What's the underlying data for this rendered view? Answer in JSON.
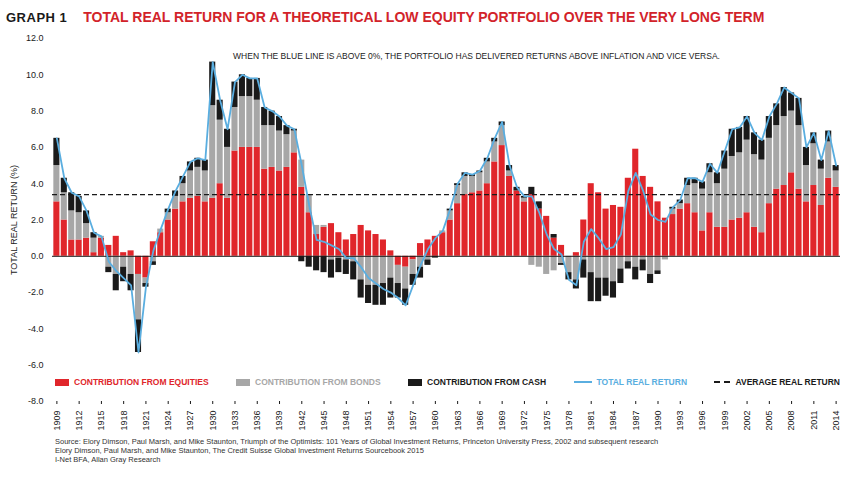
{
  "chart_data": {
    "type": "bar",
    "figure_label": "GRAPH 1",
    "title": "TOTAL REAL RETURN FOR A THEORETICAL LOW EQUITY PORTFOLIO OVER THE VERY LONG TERM",
    "annotation": "WHEN THE BLUE LINE IS ABOVE 0%, THE PORTFOLIO HAS DELIVERED RETURNS ABOVE INFLATION AND VICE VERSA.",
    "y_label": "TOTAL REAL RETURN (%)",
    "source": [
      "Source: Elory Dimson, Paul Marsh, and Mike Staunton, Triumph of the Optimists: 101 Years of Global Investment Returns, Princeton University Press, 2002 and subsequent research",
      "Elory Dimson, Paul Marsh, and Mike Staunton, The Credit Suisse Global Investment Returns Sourcebook 2015",
      "I-Net BFA, Allan Gray Research"
    ],
    "stacked": true,
    "grid": false,
    "legend": "bottom",
    "categories": [
      "1909",
      null,
      null,
      "1912",
      null,
      null,
      "1915",
      null,
      null,
      "1918",
      null,
      null,
      "1921",
      null,
      null,
      "1924",
      null,
      null,
      "1927",
      null,
      null,
      "1930",
      null,
      null,
      "1933",
      null,
      null,
      "1936",
      null,
      null,
      "1939",
      null,
      null,
      "1942",
      null,
      null,
      "1945",
      null,
      null,
      "1948",
      null,
      null,
      "1951",
      null,
      null,
      "1954",
      null,
      null,
      "1957",
      null,
      null,
      "1960",
      null,
      null,
      "1963",
      null,
      null,
      "1966",
      null,
      null,
      "1969",
      null,
      null,
      "1972",
      null,
      null,
      "1975",
      null,
      null,
      "1978",
      null,
      null,
      "1981",
      null,
      null,
      "1984",
      null,
      null,
      "1987",
      null,
      null,
      "1990",
      null,
      null,
      "1993",
      null,
      null,
      "1996",
      null,
      null,
      "1999",
      null,
      null,
      "2002",
      null,
      null,
      "2005",
      null,
      null,
      "2008",
      null,
      null,
      "2011",
      null,
      null,
      "2014"
    ],
    "ylim": [
      -8,
      12
    ],
    "yticks": [
      {
        "value": -8,
        "label": "-8.0"
      },
      {
        "value": -6,
        "label": "-6.0"
      },
      {
        "value": -4,
        "label": "-4.0"
      },
      {
        "value": -2,
        "label": "-2.0"
      },
      {
        "value": 0,
        "label": "0.0"
      },
      {
        "value": 2,
        "label": "2.0"
      },
      {
        "value": 4,
        "label": "4.0"
      },
      {
        "value": 6,
        "label": "6.0"
      },
      {
        "value": 8,
        "label": "8.0"
      },
      {
        "value": 10,
        "label": "10.0"
      },
      {
        "value": 12,
        "label": "12.0"
      }
    ],
    "series": [
      {
        "name": "CONTRIBUTION FROM EQUITIES",
        "type": "bar",
        "color": "#e0262b",
        "values": [
          3.0,
          2.0,
          0.9,
          0.9,
          1.0,
          0.2,
          1.0,
          0.6,
          1.1,
          0.2,
          0.3,
          -1.0,
          -1.2,
          0.8,
          1.3,
          2.0,
          2.6,
          3.0,
          3.2,
          3.3,
          3.0,
          3.2,
          4.0,
          3.2,
          5.8,
          6.0,
          6.0,
          6.0,
          4.8,
          4.9,
          4.7,
          4.9,
          5.7,
          3.8,
          2.4,
          1.2,
          1.6,
          1.8,
          1.3,
          0.9,
          1.2,
          1.7,
          1.4,
          1.2,
          0.9,
          0.3,
          -0.5,
          -0.6,
          -0.2,
          0.7,
          0.9,
          1.1,
          1.3,
          2.0,
          2.9,
          3.4,
          3.5,
          3.6,
          4.0,
          5.2,
          6.1,
          4.4,
          3.6,
          3.0,
          3.4,
          2.6,
          2.2,
          1.0,
          0.6,
          0.0,
          0.2,
          2.0,
          4.0,
          3.5,
          2.6,
          2.8,
          2.7,
          4.3,
          5.9,
          4.4,
          3.8,
          3.0,
          2.1,
          2.3,
          2.6,
          2.9,
          2.4,
          1.4,
          2.4,
          1.6,
          1.6,
          2.0,
          2.1,
          2.4,
          1.6,
          1.3,
          2.9,
          3.7,
          3.9,
          4.6,
          3.7,
          3.0,
          3.9,
          2.8,
          4.3,
          3.8
        ]
      },
      {
        "name": "CONTRIBUTION FROM BONDS",
        "type": "bar",
        "color": "#a7a7a7",
        "values": [
          2.0,
          1.5,
          1.6,
          1.5,
          0.8,
          0.8,
          0.1,
          -0.6,
          -1.0,
          -0.6,
          -1.0,
          -2.5,
          -0.3,
          -0.3,
          0.2,
          0.4,
          0.7,
          1.0,
          1.5,
          1.6,
          1.7,
          5.1,
          3.5,
          2.8,
          2.4,
          2.8,
          2.8,
          2.6,
          2.4,
          2.3,
          2.2,
          1.8,
          1.2,
          1.5,
          1.0,
          0.5,
          0.1,
          -0.2,
          -0.1,
          -0.2,
          -0.3,
          -1.3,
          -1.6,
          -1.6,
          -1.5,
          -1.2,
          -1.0,
          -1.2,
          -0.8,
          -0.6,
          -0.2,
          0.0,
          0.1,
          0.5,
          1.0,
          1.0,
          0.9,
          1.0,
          1.2,
          1.1,
          1.1,
          0.3,
          0.0,
          0.2,
          -0.5,
          -0.6,
          -1.0,
          -0.8,
          -0.4,
          -0.9,
          -1.3,
          -0.2,
          -0.9,
          -1.2,
          -1.2,
          -1.4,
          -0.7,
          -0.3,
          -0.6,
          -0.2,
          -1.0,
          -0.8,
          -0.2,
          0.3,
          0.3,
          1.0,
          1.6,
          2.3,
          2.2,
          2.4,
          3.2,
          3.5,
          3.6,
          4.0,
          4.0,
          4.0,
          3.6,
          3.5,
          3.8,
          3.4,
          3.5,
          2.0,
          2.3,
          2.0,
          2.0,
          0.9
        ]
      },
      {
        "name": "CONTRIBUTION FROM CASH",
        "type": "bar",
        "color": "#1a1a1a",
        "values": [
          1.5,
          0.8,
          1.0,
          0.9,
          0.7,
          0.3,
          0.0,
          -0.3,
          -0.9,
          -0.8,
          -0.9,
          -1.8,
          -0.2,
          -0.2,
          0.0,
          0.2,
          0.3,
          0.4,
          0.5,
          0.5,
          0.6,
          2.4,
          1.1,
          1.0,
          1.4,
          1.2,
          1.0,
          1.2,
          1.0,
          0.8,
          0.8,
          0.5,
          0.1,
          -0.3,
          -0.6,
          -0.8,
          -0.9,
          -1.0,
          -0.8,
          -0.8,
          -1.0,
          -1.0,
          -1.0,
          -1.1,
          -1.2,
          -1.1,
          -0.8,
          -0.9,
          -0.6,
          -0.6,
          -0.3,
          -0.1,
          0.0,
          0.1,
          0.1,
          0.2,
          0.1,
          0.1,
          0.2,
          0.2,
          0.2,
          0.3,
          0.2,
          0.1,
          0.4,
          0.4,
          0.0,
          0.2,
          -0.1,
          -0.4,
          -0.5,
          -1.0,
          -1.6,
          -1.3,
          -1.0,
          -0.9,
          -0.8,
          -0.4,
          -0.7,
          -0.6,
          -0.5,
          -0.2,
          0.0,
          0.1,
          0.2,
          0.4,
          0.3,
          0.4,
          0.5,
          0.6,
          1.0,
          1.5,
          1.4,
          1.3,
          1.2,
          1.1,
          1.2,
          1.2,
          1.6,
          1.0,
          1.5,
          1.0,
          0.6,
          0.5,
          0.6,
          0.3
        ]
      },
      {
        "name": "TOTAL REAL RETURN",
        "type": "line",
        "color": "#5aaee0",
        "values": [
          6.5,
          4.3,
          3.5,
          3.3,
          2.5,
          1.3,
          1.1,
          -0.3,
          -0.8,
          -1.2,
          -1.6,
          -5.3,
          -1.7,
          0.3,
          1.5,
          2.6,
          3.6,
          4.4,
          5.2,
          5.4,
          5.3,
          10.7,
          8.6,
          7.0,
          9.6,
          10.0,
          9.8,
          9.8,
          8.2,
          8.0,
          7.7,
          7.2,
          7.0,
          5.0,
          2.8,
          0.9,
          0.8,
          0.6,
          0.4,
          -0.1,
          -0.1,
          -0.6,
          -1.2,
          -1.5,
          -1.8,
          -2.0,
          -2.3,
          -2.7,
          -1.6,
          -0.5,
          0.4,
          1.0,
          1.4,
          2.6,
          4.0,
          4.6,
          4.5,
          4.7,
          5.4,
          6.5,
          7.4,
          5.0,
          3.8,
          3.3,
          3.3,
          2.4,
          1.2,
          0.4,
          0.1,
          -1.3,
          -1.6,
          0.8,
          1.5,
          1.0,
          0.4,
          0.5,
          1.2,
          3.6,
          4.6,
          3.6,
          2.3,
          2.0,
          1.9,
          2.7,
          3.1,
          4.3,
          4.3,
          4.1,
          5.1,
          4.6,
          5.8,
          7.0,
          7.1,
          7.7,
          6.8,
          6.4,
          7.7,
          8.4,
          9.3,
          9.0,
          8.7,
          6.0,
          6.8,
          5.3,
          6.9,
          5.0
        ]
      }
    ],
    "average": {
      "name": "AVERAGE REAL RETURN",
      "value": 3.4,
      "color": "#1a1a1a",
      "line_style": "dashed"
    }
  }
}
